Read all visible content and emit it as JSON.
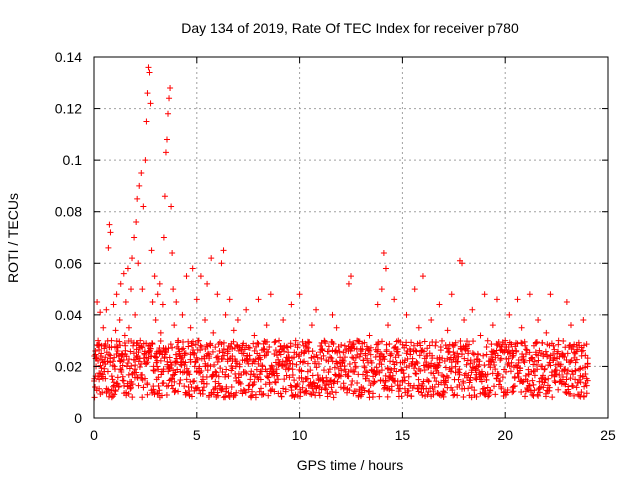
{
  "chart_data": {
    "type": "scatter",
    "title": "Day 134 of 2019, Rate Of TEC Index for receiver p780",
    "xlabel": "GPS time / hours",
    "ylabel": "ROTI / TECUs",
    "xlim": [
      0,
      25
    ],
    "ylim": [
      0,
      0.14
    ],
    "xticks": [
      0,
      5,
      10,
      15,
      20,
      25
    ],
    "yticks": [
      0,
      0.02,
      0.04,
      0.06,
      0.08,
      0.1,
      0.12,
      0.14
    ],
    "xtick_labels": [
      "0",
      "5",
      "10",
      "15",
      "20",
      "25"
    ],
    "ytick_labels": [
      "0",
      "0.02",
      "0.04",
      "0.06",
      "0.08",
      "0.1",
      "0.12",
      "0.14"
    ],
    "grid": true,
    "marker": "plus",
    "color": "#ff0000",
    "series": [
      {
        "points": [
          [
            0.05,
            0.012
          ],
          [
            0.1,
            0.02
          ],
          [
            0.15,
            0.045
          ],
          [
            0.2,
            0.03
          ],
          [
            0.25,
            0.015
          ],
          [
            0.3,
            0.041
          ],
          [
            0.35,
            0.025
          ],
          [
            0.4,
            0.01
          ],
          [
            0.45,
            0.035
          ],
          [
            0.5,
            0.018
          ],
          [
            0.55,
            0.028
          ],
          [
            0.6,
            0.042
          ],
          [
            0.65,
            0.022
          ],
          [
            0.7,
            0.066
          ],
          [
            0.75,
            0.075
          ],
          [
            0.8,
            0.072
          ],
          [
            0.85,
            0.03
          ],
          [
            0.9,
            0.015
          ],
          [
            0.95,
            0.044
          ],
          [
            1.0,
            0.02
          ],
          [
            1.05,
            0.034
          ],
          [
            1.1,
            0.048
          ],
          [
            1.15,
            0.026
          ],
          [
            1.2,
            0.012
          ],
          [
            1.25,
            0.038
          ],
          [
            1.3,
            0.052
          ],
          [
            1.35,
            0.024
          ],
          [
            1.4,
            0.016
          ],
          [
            1.45,
            0.056
          ],
          [
            1.5,
            0.032
          ],
          [
            1.55,
            0.045
          ],
          [
            1.6,
            0.02
          ],
          [
            1.65,
            0.058
          ],
          [
            1.7,
            0.035
          ],
          [
            1.75,
            0.014
          ],
          [
            1.8,
            0.05
          ],
          [
            1.85,
            0.062
          ],
          [
            1.9,
            0.028
          ],
          [
            1.95,
            0.07
          ],
          [
            2.0,
            0.04
          ],
          [
            2.05,
            0.076
          ],
          [
            2.1,
            0.085
          ],
          [
            2.15,
            0.06
          ],
          [
            2.2,
            0.09
          ],
          [
            2.25,
            0.03
          ],
          [
            2.3,
            0.095
          ],
          [
            2.35,
            0.05
          ],
          [
            2.4,
            0.082
          ],
          [
            2.45,
            0.025
          ],
          [
            2.5,
            0.1
          ],
          [
            2.55,
            0.115
          ],
          [
            2.6,
            0.126
          ],
          [
            2.65,
            0.136
          ],
          [
            2.7,
            0.134
          ],
          [
            2.75,
            0.122
          ],
          [
            2.8,
            0.065
          ],
          [
            2.85,
            0.045
          ],
          [
            2.9,
            0.02
          ],
          [
            2.95,
            0.055
          ],
          [
            3.0,
            0.038
          ],
          [
            3.05,
            0.015
          ],
          [
            3.1,
            0.048
          ],
          [
            3.15,
            0.026
          ],
          [
            3.2,
            0.052
          ],
          [
            3.25,
            0.033
          ],
          [
            3.3,
            0.018
          ],
          [
            3.35,
            0.044
          ],
          [
            3.4,
            0.07
          ],
          [
            3.45,
            0.086
          ],
          [
            3.5,
            0.103
          ],
          [
            3.55,
            0.108
          ],
          [
            3.6,
            0.118
          ],
          [
            3.65,
            0.124
          ],
          [
            3.7,
            0.128
          ],
          [
            3.75,
            0.082
          ],
          [
            3.8,
            0.064
          ],
          [
            3.85,
            0.05
          ],
          [
            3.9,
            0.036
          ],
          [
            3.95,
            0.022
          ],
          [
            4.0,
            0.045
          ],
          [
            4.1,
            0.03
          ],
          [
            4.2,
            0.018
          ],
          [
            4.3,
            0.04
          ],
          [
            4.4,
            0.025
          ],
          [
            4.5,
            0.055
          ],
          [
            4.6,
            0.012
          ],
          [
            4.7,
            0.035
          ],
          [
            4.8,
            0.058
          ],
          [
            4.9,
            0.02
          ],
          [
            5.0,
            0.046
          ],
          [
            5.1,
            0.03
          ],
          [
            5.2,
            0.055
          ],
          [
            5.3,
            0.015
          ],
          [
            5.4,
            0.038
          ],
          [
            5.5,
            0.052
          ],
          [
            5.6,
            0.024
          ],
          [
            5.7,
            0.062
          ],
          [
            5.8,
            0.033
          ],
          [
            5.9,
            0.018
          ],
          [
            6.0,
            0.048
          ],
          [
            6.1,
            0.026
          ],
          [
            6.2,
            0.06
          ],
          [
            6.3,
            0.065
          ],
          [
            6.4,
            0.04
          ],
          [
            6.5,
            0.022
          ],
          [
            6.6,
            0.046
          ],
          [
            6.7,
            0.012
          ],
          [
            6.8,
            0.034
          ],
          [
            6.9,
            0.02
          ],
          [
            7.0,
            0.038
          ],
          [
            7.2,
            0.025
          ],
          [
            7.4,
            0.042
          ],
          [
            7.6,
            0.015
          ],
          [
            7.8,
            0.032
          ],
          [
            8.0,
            0.046
          ],
          [
            8.2,
            0.02
          ],
          [
            8.4,
            0.036
          ],
          [
            8.6,
            0.048
          ],
          [
            8.8,
            0.014
          ],
          [
            9.0,
            0.03
          ],
          [
            9.2,
            0.038
          ],
          [
            9.4,
            0.022
          ],
          [
            9.6,
            0.044
          ],
          [
            9.8,
            0.012
          ],
          [
            10.0,
            0.048
          ],
          [
            10.2,
            0.028
          ],
          [
            10.4,
            0.018
          ],
          [
            10.6,
            0.036
          ],
          [
            10.8,
            0.042
          ],
          [
            11.0,
            0.015
          ],
          [
            11.2,
            0.03
          ],
          [
            11.4,
            0.022
          ],
          [
            11.6,
            0.04
          ],
          [
            11.8,
            0.035
          ],
          [
            12.0,
            0.02
          ],
          [
            12.2,
            0.028
          ],
          [
            12.4,
            0.052
          ],
          [
            12.5,
            0.055
          ],
          [
            12.6,
            0.018
          ],
          [
            12.8,
            0.03
          ],
          [
            13.0,
            0.012
          ],
          [
            13.2,
            0.025
          ],
          [
            13.4,
            0.032
          ],
          [
            13.6,
            0.018
          ],
          [
            13.8,
            0.044
          ],
          [
            14.0,
            0.05
          ],
          [
            14.1,
            0.064
          ],
          [
            14.2,
            0.058
          ],
          [
            14.3,
            0.036
          ],
          [
            14.4,
            0.022
          ],
          [
            14.6,
            0.046
          ],
          [
            14.8,
            0.03
          ],
          [
            15.0,
            0.014
          ],
          [
            15.2,
            0.04
          ],
          [
            15.4,
            0.026
          ],
          [
            15.6,
            0.05
          ],
          [
            15.8,
            0.035
          ],
          [
            16.0,
            0.055
          ],
          [
            16.2,
            0.02
          ],
          [
            16.4,
            0.038
          ],
          [
            16.6,
            0.028
          ],
          [
            16.8,
            0.044
          ],
          [
            17.0,
            0.016
          ],
          [
            17.2,
            0.034
          ],
          [
            17.4,
            0.048
          ],
          [
            17.6,
            0.022
          ],
          [
            17.8,
            0.061
          ],
          [
            17.9,
            0.06
          ],
          [
            18.0,
            0.038
          ],
          [
            18.2,
            0.026
          ],
          [
            18.4,
            0.042
          ],
          [
            18.6,
            0.015
          ],
          [
            18.8,
            0.032
          ],
          [
            19.0,
            0.048
          ],
          [
            19.2,
            0.022
          ],
          [
            19.4,
            0.036
          ],
          [
            19.6,
            0.046
          ],
          [
            19.8,
            0.012
          ],
          [
            20.0,
            0.03
          ],
          [
            20.2,
            0.04
          ],
          [
            20.4,
            0.025
          ],
          [
            20.6,
            0.046
          ],
          [
            20.8,
            0.035
          ],
          [
            21.0,
            0.015
          ],
          [
            21.2,
            0.048
          ],
          [
            21.4,
            0.028
          ],
          [
            21.6,
            0.038
          ],
          [
            21.8,
            0.02
          ],
          [
            22.0,
            0.033
          ],
          [
            22.2,
            0.048
          ],
          [
            22.4,
            0.018
          ],
          [
            22.6,
            0.03
          ],
          [
            22.8,
            0.024
          ],
          [
            23.0,
            0.045
          ],
          [
            23.2,
            0.036
          ],
          [
            23.4,
            0.015
          ],
          [
            23.6,
            0.028
          ],
          [
            23.8,
            0.038
          ],
          [
            24.0,
            0.02
          ]
        ],
        "band": {
          "x_start": 0.0,
          "x_end": 24.0,
          "step_hours": 0.06,
          "y_min": 0.008,
          "y_max": 0.03
        }
      }
    ]
  }
}
